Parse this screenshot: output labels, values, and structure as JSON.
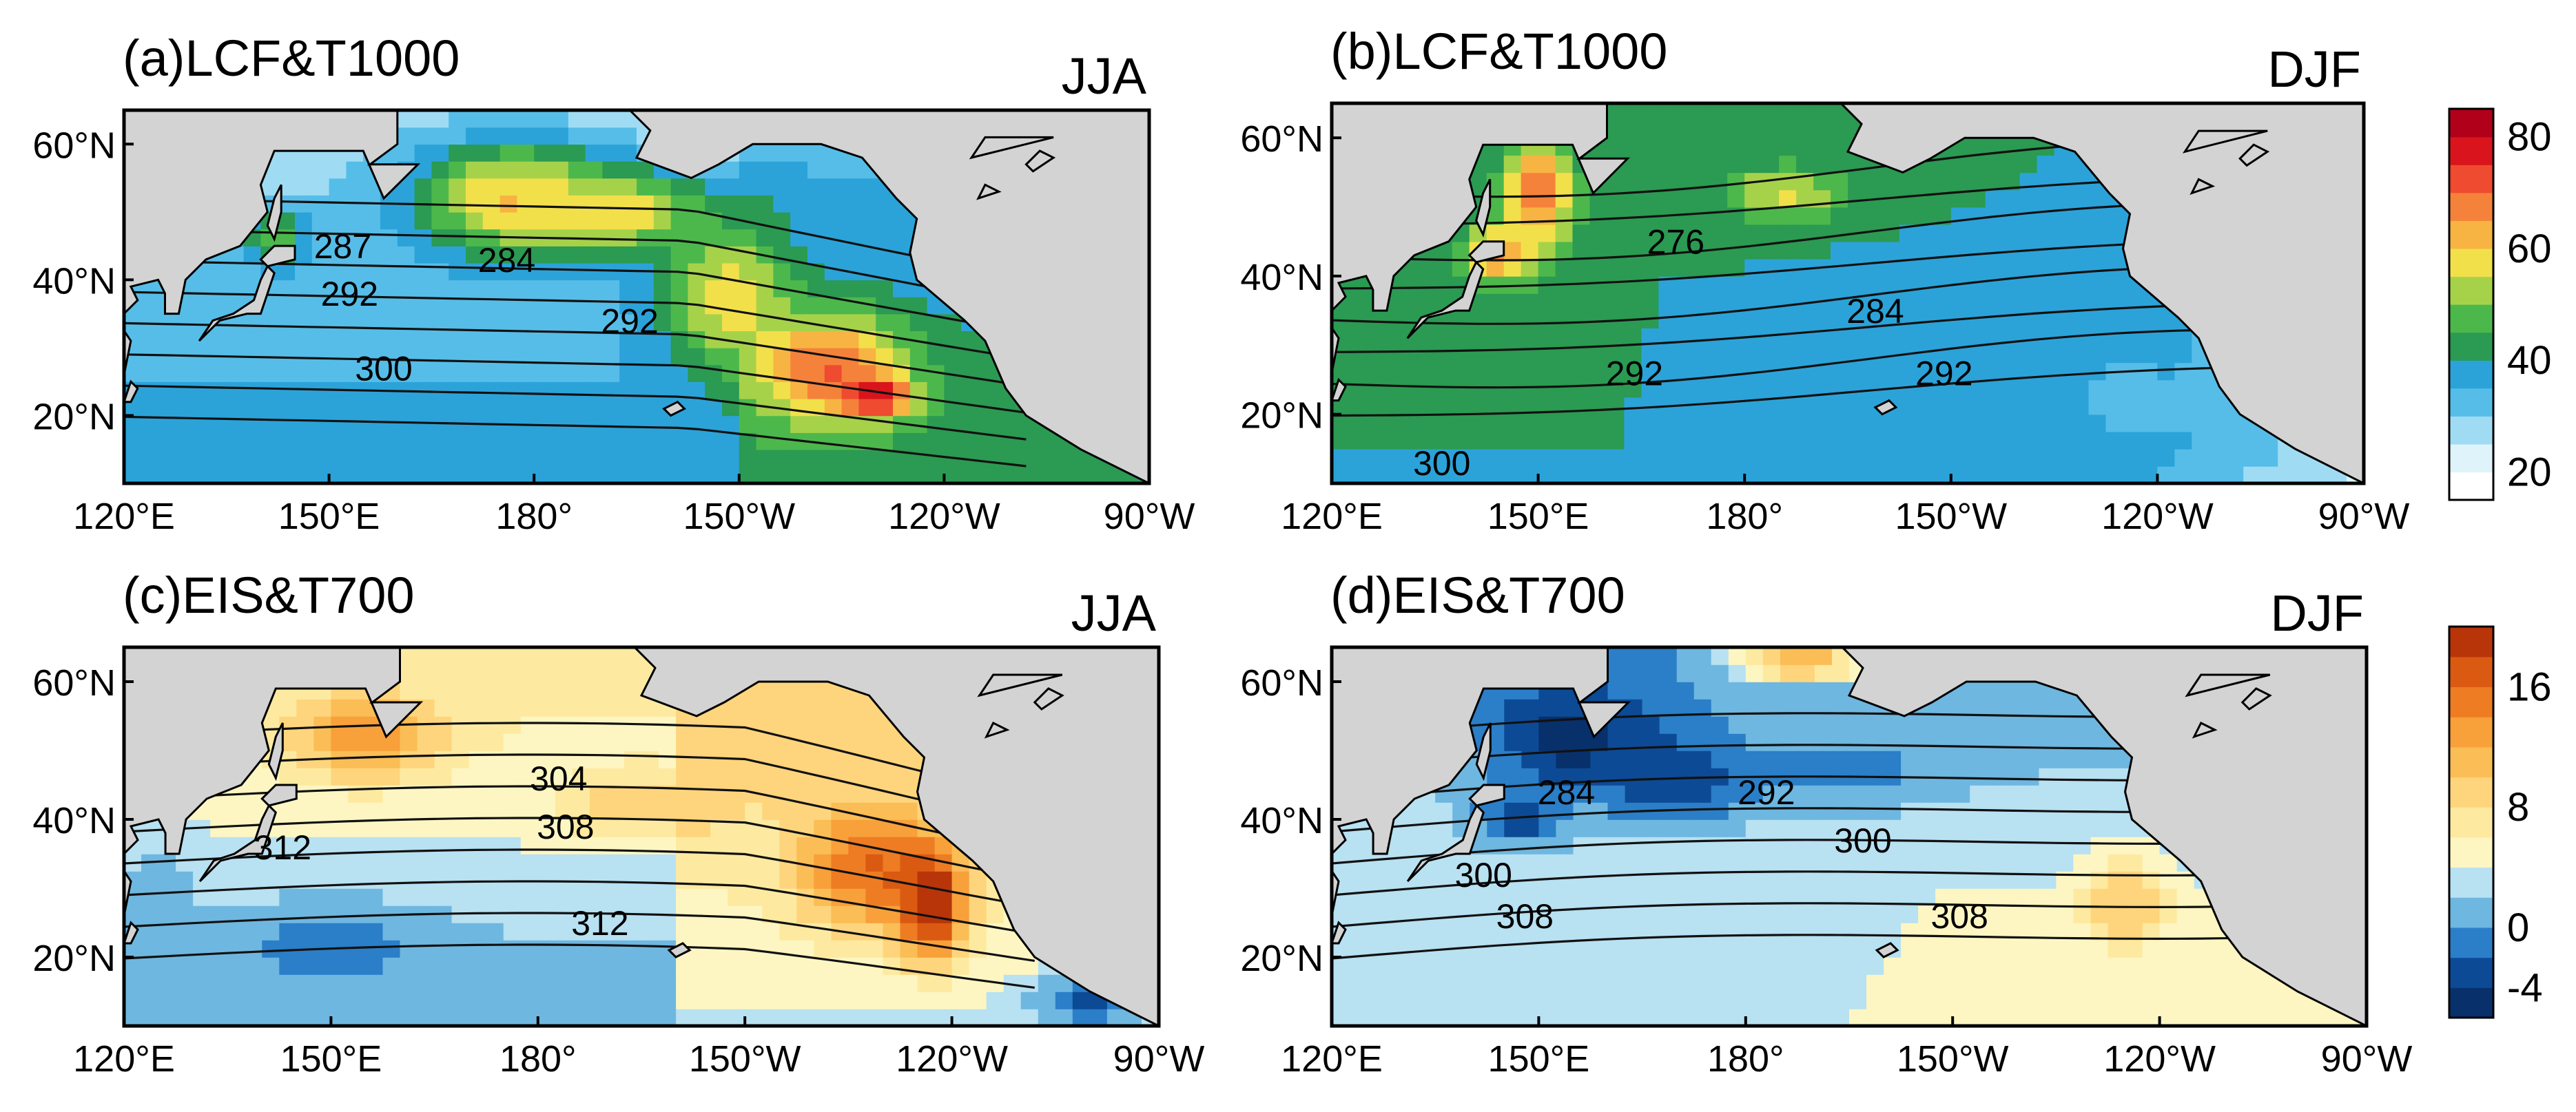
{
  "chart_data": [
    {
      "type": "heatmap",
      "panel": "(a)LCF&T1000",
      "season": "JJA",
      "field": "LCF",
      "contour_field": "T1000",
      "xticks": [
        "120°E",
        "150°E",
        "180°",
        "150°W",
        "120°W",
        "90°W"
      ],
      "yticks": [
        "60°N",
        "40°N",
        "20°N"
      ],
      "contour_labels": [
        {
          "value": "287",
          "lon": 152,
          "lat": 45
        },
        {
          "value": "284",
          "lon": 176,
          "lat": 43
        },
        {
          "value": "292",
          "lon": 153,
          "lat": 38
        },
        {
          "value": "292",
          "lon": -166,
          "lat": 34
        },
        {
          "value": "300",
          "lon": 158,
          "lat": 27
        }
      ],
      "blobs": [
        {
          "lon": 177,
          "lat": 52,
          "rx": 14,
          "ry": 8,
          "value": 62
        },
        {
          "lon": -168,
          "lat": 50,
          "rx": 14,
          "ry": 6,
          "value": 58
        },
        {
          "lon": -152,
          "lat": 38,
          "rx": 9,
          "ry": 10,
          "value": 58
        },
        {
          "lon": -137,
          "lat": 27,
          "rx": 11,
          "ry": 8,
          "value": 70
        },
        {
          "lon": -130,
          "lat": 23,
          "rx": 5,
          "ry": 3,
          "value": 82
        },
        {
          "lon": 142,
          "lat": 46,
          "rx": 5,
          "ry": 4,
          "value": 48
        }
      ]
    },
    {
      "type": "heatmap",
      "panel": "(b)LCF&T1000",
      "season": "DJF",
      "field": "LCF",
      "contour_field": "T1000",
      "xticks": [
        "120°E",
        "150°E",
        "180°",
        "150°W",
        "120°W",
        "90°W"
      ],
      "yticks": [
        "60°N",
        "40°N",
        "20°N"
      ],
      "contour_labels": [
        {
          "value": "276",
          "lon": 170,
          "lat": 45
        },
        {
          "value": "284",
          "lon": -161,
          "lat": 35
        },
        {
          "value": "292",
          "lon": 164,
          "lat": 26
        },
        {
          "value": "292",
          "lon": -151,
          "lat": 26
        },
        {
          "value": "300",
          "lon": 136,
          "lat": 13
        }
      ],
      "blobs": [
        {
          "lon": 150,
          "lat": 52,
          "rx": 5,
          "ry": 9,
          "value": 68
        },
        {
          "lon": 144,
          "lat": 43,
          "rx": 5,
          "ry": 4,
          "value": 66
        },
        {
          "lon": -174,
          "lat": 52,
          "rx": 9,
          "ry": 4,
          "value": 56
        },
        {
          "lon": -158,
          "lat": 32,
          "rx": 10,
          "ry": 7,
          "value": 36
        },
        {
          "lon": -125,
          "lat": 22,
          "rx": 6,
          "ry": 5,
          "value": 30
        }
      ]
    },
    {
      "type": "heatmap",
      "panel": "(c)EIS&T700",
      "season": "JJA",
      "field": "EIS",
      "contour_field": "T700",
      "xticks": [
        "120°E",
        "150°E",
        "180°",
        "150°W",
        "120°W",
        "90°W"
      ],
      "yticks": [
        "60°N",
        "40°N",
        "20°N"
      ],
      "contour_labels": [
        {
          "value": "304",
          "lon": -177,
          "lat": 46
        },
        {
          "value": "308",
          "lon": -176,
          "lat": 39
        },
        {
          "value": "312",
          "lon": 143,
          "lat": 36
        },
        {
          "value": "312",
          "lon": -171,
          "lat": 25
        }
      ],
      "blobs": [
        {
          "lon": 155,
          "lat": 52,
          "rx": 11,
          "ry": 6,
          "value": 14
        },
        {
          "lon": -165,
          "lat": 42,
          "rx": 12,
          "ry": 5,
          "value": 10
        },
        {
          "lon": -132,
          "lat": 33,
          "rx": 10,
          "ry": 9,
          "value": 16
        },
        {
          "lon": -123,
          "lat": 28,
          "rx": 5,
          "ry": 8,
          "value": 21
        },
        {
          "lon": 150,
          "lat": 22,
          "rx": 16,
          "ry": 6,
          "value": -1
        },
        {
          "lon": 125,
          "lat": 30,
          "rx": 6,
          "ry": 6,
          "value": 1
        },
        {
          "lon": -100,
          "lat": 14,
          "rx": 8,
          "ry": 4,
          "value": -3
        }
      ]
    },
    {
      "type": "heatmap",
      "panel": "(d)EIS&T700",
      "season": "DJF",
      "field": "EIS",
      "contour_field": "T700",
      "xticks": [
        "120°E",
        "150°E",
        "180°",
        "150°W",
        "120°W",
        "90°W"
      ],
      "yticks": [
        "60°N",
        "40°N",
        "20°N"
      ],
      "contour_labels": [
        {
          "value": "284",
          "lon": 154,
          "lat": 44
        },
        {
          "value": "292",
          "lon": -177,
          "lat": 44
        },
        {
          "value": "300",
          "lon": -163,
          "lat": 37
        },
        {
          "value": "300",
          "lon": 142,
          "lat": 32
        },
        {
          "value": "308",
          "lon": 148,
          "lat": 26
        },
        {
          "value": "308",
          "lon": -149,
          "lat": 26
        }
      ],
      "blobs": [
        {
          "lon": 155,
          "lat": 52,
          "rx": 12,
          "ry": 8,
          "value": -5.5
        },
        {
          "lon": 170,
          "lat": 46,
          "rx": 12,
          "ry": 6,
          "value": -4
        },
        {
          "lon": 147,
          "lat": 40,
          "rx": 7,
          "ry": 4,
          "value": -3
        },
        {
          "lon": -165,
          "lat": 47,
          "rx": 14,
          "ry": 5,
          "value": -1
        },
        {
          "lon": -125,
          "lat": 28,
          "rx": 7,
          "ry": 7,
          "value": 10
        },
        {
          "lon": -172,
          "lat": 63,
          "rx": 10,
          "ry": 3,
          "value": 12
        }
      ]
    }
  ],
  "colorbars": [
    {
      "for_panels": [
        "a",
        "b"
      ],
      "ticks": [
        "80",
        "60",
        "40",
        "20"
      ],
      "colors": [
        "#ffffff",
        "#dff3fb",
        "#9fdcf3",
        "#56bde8",
        "#2ba3d9",
        "#2b9a52",
        "#4cb84c",
        "#a6d24a",
        "#f2e04a",
        "#f7b442",
        "#f5823a",
        "#ef4b30",
        "#d9141c",
        "#b0001a"
      ],
      "range": [
        15,
        85
      ]
    },
    {
      "for_panels": [
        "c",
        "d"
      ],
      "ticks": [
        "16",
        "8",
        "0",
        "-4"
      ],
      "colors": [
        "#08306b",
        "#0c4a96",
        "#2b7ec8",
        "#6eb7e0",
        "#b8e1f2",
        "#fdf6c2",
        "#fdeaa0",
        "#fed57c",
        "#fbbd55",
        "#f8a03a",
        "#ee7c22",
        "#db5a12",
        "#b8350a"
      ],
      "range": [
        -6,
        20
      ]
    }
  ],
  "colors": {
    "land": "#d3d3d3",
    "contour": "#111111"
  }
}
